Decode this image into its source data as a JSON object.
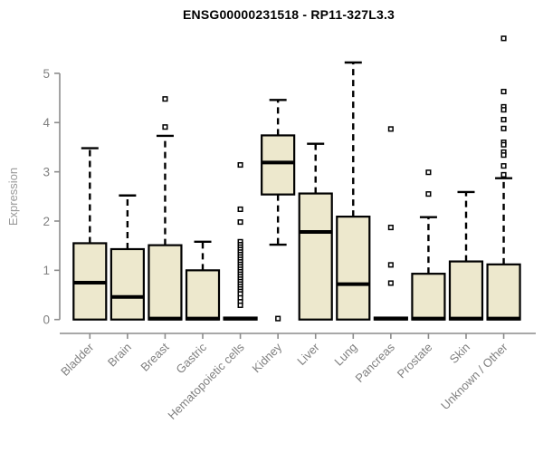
{
  "chart_data": {
    "type": "boxplot",
    "title": "ENSG00000231518 - RP11-327L3.3",
    "ylabel": "Expression",
    "xlabel": "",
    "ylim": [
      0,
      5.8
    ],
    "yticks": [
      0,
      1,
      2,
      3,
      4,
      5
    ],
    "grid": false,
    "legend": "none",
    "x_tick_label_rotation": -45,
    "categories": [
      "Bladder",
      "Brain",
      "Breast",
      "Gastric",
      "Hematopoietic cells",
      "Kidney",
      "Liver",
      "Lung",
      "Pancreas",
      "Prostate",
      "Skin",
      "Unknown / Other"
    ],
    "boxes": [
      {
        "category": "Bladder",
        "whisker_low": 0,
        "q1": 0,
        "median": 0.75,
        "q3": 1.55,
        "whisker_high": 3.48,
        "outliers": []
      },
      {
        "category": "Brain",
        "whisker_low": 0,
        "q1": 0,
        "median": 0.46,
        "q3": 1.43,
        "whisker_high": 2.52,
        "outliers": []
      },
      {
        "category": "Breast",
        "whisker_low": 0,
        "q1": 0,
        "median": 0.02,
        "q3": 1.51,
        "whisker_high": 3.73,
        "outliers": [
          4.48,
          3.91
        ]
      },
      {
        "category": "Gastric",
        "whisker_low": 0,
        "q1": 0,
        "median": 0.02,
        "q3": 1.0,
        "whisker_high": 1.58,
        "outliers": []
      },
      {
        "category": "Hematopoietic cells",
        "whisker_low": 0,
        "q1": 0,
        "median": 0.02,
        "q3": 0.04,
        "whisker_high": 0.05,
        "outliers": [
          3.14,
          2.24,
          1.98,
          1.58,
          1.52,
          1.47,
          1.42,
          1.37,
          1.32,
          1.27,
          1.22,
          1.17,
          1.12,
          1.07,
          1.02,
          0.97,
          0.92,
          0.87,
          0.82,
          0.77,
          0.72,
          0.67,
          0.62,
          0.57,
          0.52,
          0.44,
          0.36,
          0.29
        ]
      },
      {
        "category": "Kidney",
        "whisker_low": 1.52,
        "q1": 2.54,
        "median": 3.19,
        "q3": 3.74,
        "whisker_high": 4.46,
        "outliers": [
          0.02
        ]
      },
      {
        "category": "Liver",
        "whisker_low": 0,
        "q1": 0,
        "median": 1.78,
        "q3": 2.56,
        "whisker_high": 3.57,
        "outliers": []
      },
      {
        "category": "Lung",
        "whisker_low": 0,
        "q1": 0,
        "median": 0.72,
        "q3": 2.09,
        "whisker_high": 5.22,
        "outliers": []
      },
      {
        "category": "Pancreas",
        "whisker_low": 0,
        "q1": 0,
        "median": 0.02,
        "q3": 0.04,
        "whisker_high": 0.05,
        "outliers": [
          3.87,
          1.87,
          1.11,
          0.74
        ]
      },
      {
        "category": "Prostate",
        "whisker_low": 0,
        "q1": 0,
        "median": 0.02,
        "q3": 0.93,
        "whisker_high": 2.08,
        "outliers": [
          2.99,
          2.55
        ]
      },
      {
        "category": "Skin",
        "whisker_low": 0,
        "q1": 0,
        "median": 0.02,
        "q3": 1.18,
        "whisker_high": 2.59,
        "outliers": []
      },
      {
        "category": "Unknown / Other",
        "whisker_low": 0,
        "q1": 0,
        "median": 0.02,
        "q3": 1.12,
        "whisker_high": 2.87,
        "outliers": [
          5.71,
          4.63,
          4.32,
          4.26,
          4.06,
          3.88,
          3.6,
          3.55,
          3.4,
          3.34,
          3.12,
          2.94
        ]
      }
    ],
    "colors": {
      "background": "#ffffff",
      "box_fill": "#EDE8CD",
      "box_stroke": "#000000",
      "median": "#000000",
      "whisker": "#000000",
      "outlier_stroke": "#000000",
      "outlier_fill": "#ffffff",
      "axis": "#8C8C8C",
      "tick_label": "#808080",
      "axis_label": "#999999",
      "title": "#000000"
    }
  }
}
